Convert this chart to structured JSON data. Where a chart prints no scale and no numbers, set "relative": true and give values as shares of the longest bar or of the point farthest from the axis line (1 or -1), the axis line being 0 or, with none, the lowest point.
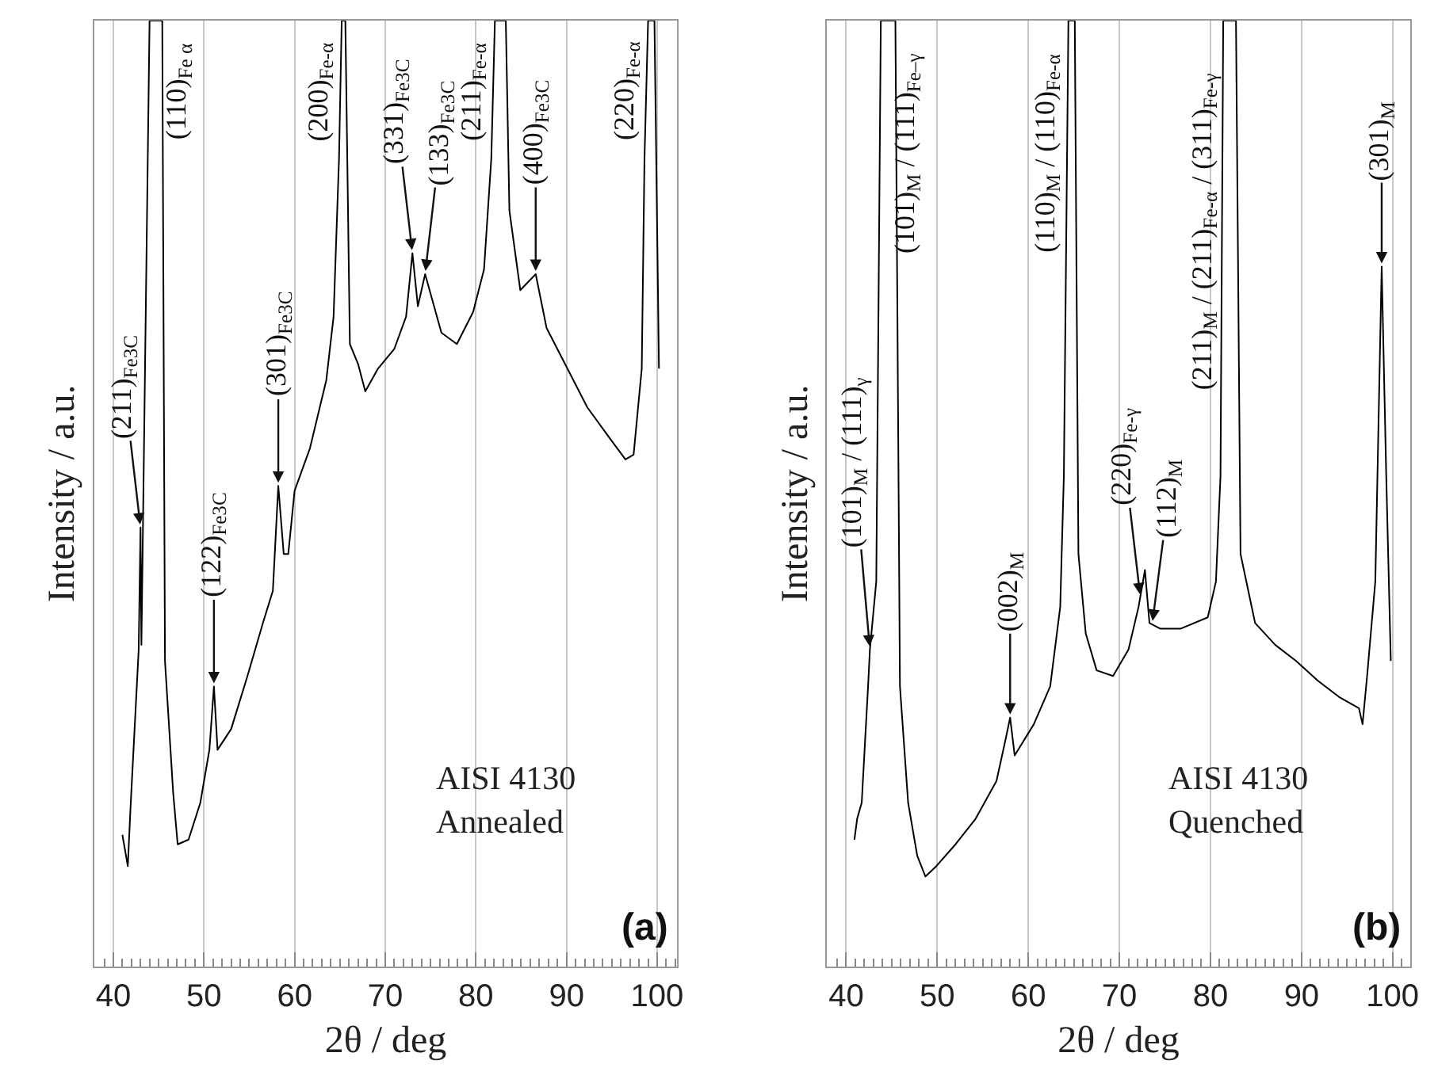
{
  "chart_data": [
    {
      "type": "line",
      "relative": true,
      "xlabel": "2θ / deg",
      "ylabel": "Intensity / a.u.",
      "xlim": [
        37.9,
        102.2
      ],
      "grid": "x",
      "tick_labels": "x",
      "xticks": [
        {
          "value": 38,
          "label": null
        },
        {
          "value": 39,
          "label": null
        },
        40,
        {
          "value": 41,
          "label": null
        },
        {
          "value": 42,
          "label": null
        },
        {
          "value": 43,
          "label": null
        },
        {
          "value": 44,
          "label": null
        },
        {
          "value": 45,
          "label": null
        },
        {
          "value": 46,
          "label": null
        },
        {
          "value": 47,
          "label": null
        },
        {
          "value": 48,
          "label": null
        },
        {
          "value": 49,
          "label": null
        },
        50,
        {
          "value": 51,
          "label": null
        },
        {
          "value": 52,
          "label": null
        },
        {
          "value": 53,
          "label": null
        },
        {
          "value": 54,
          "label": null
        },
        {
          "value": 55,
          "label": null
        },
        {
          "value": 56,
          "label": null
        },
        {
          "value": 57,
          "label": null
        },
        {
          "value": 58,
          "label": null
        },
        {
          "value": 59,
          "label": null
        },
        60,
        {
          "value": 61,
          "label": null
        },
        {
          "value": 62,
          "label": null
        },
        {
          "value": 63,
          "label": null
        },
        {
          "value": 64,
          "label": null
        },
        {
          "value": 65,
          "label": null
        },
        {
          "value": 66,
          "label": null
        },
        {
          "value": 67,
          "label": null
        },
        {
          "value": 68,
          "label": null
        },
        {
          "value": 69,
          "label": null
        },
        70,
        {
          "value": 71,
          "label": null
        },
        {
          "value": 72,
          "label": null
        },
        {
          "value": 73,
          "label": null
        },
        {
          "value": 74,
          "label": null
        },
        {
          "value": 75,
          "label": null
        },
        {
          "value": 76,
          "label": null
        },
        {
          "value": 77,
          "label": null
        },
        {
          "value": 78,
          "label": null
        },
        {
          "value": 79,
          "label": null
        },
        80,
        {
          "value": 81,
          "label": null
        },
        {
          "value": 82,
          "label": null
        },
        {
          "value": 83,
          "label": null
        },
        {
          "value": 84,
          "label": null
        },
        {
          "value": 85,
          "label": null
        },
        {
          "value": 86,
          "label": null
        },
        {
          "value": 87,
          "label": null
        },
        {
          "value": 88,
          "label": null
        },
        {
          "value": 89,
          "label": null
        },
        90,
        {
          "value": 91,
          "label": null
        },
        {
          "value": 92,
          "label": null
        },
        {
          "value": 93,
          "label": null
        },
        {
          "value": 94,
          "label": null
        },
        {
          "value": 95,
          "label": null
        },
        {
          "value": 96,
          "label": null
        },
        {
          "value": 97,
          "label": null
        },
        {
          "value": 98,
          "label": null
        },
        {
          "value": 99,
          "label": null
        },
        100,
        {
          "value": 101,
          "label": null
        },
        {
          "value": 102,
          "label": null
        }
      ],
      "series": [
        {
          "color": "#000000",
          "x": [
            41.0,
            41.6,
            41.9,
            42.8,
            43.0,
            43.1,
            44.0,
            45.4,
            45.7,
            46.6,
            47.1,
            48.3,
            49.6,
            50.6,
            51.1,
            51.5,
            53.0,
            54.8,
            56.5,
            57.6,
            58.2,
            58.8,
            59.3,
            60.0,
            61.7,
            63.5,
            64.3,
            64.9,
            65.2,
            65.6,
            66.1,
            67.0,
            67.8,
            69.2,
            71.0,
            72.3,
            73.0,
            73.6,
            74.4,
            76.2,
            77.9,
            79.7,
            80.9,
            81.7,
            82.1,
            83.3,
            83.7,
            84.9,
            86.6,
            87.8,
            90.1,
            92.3,
            94.8,
            96.5,
            97.4,
            98.3,
            98.6,
            99.0,
            99.7,
            100.2
          ],
          "values": [
            0.139,
            0.106,
            0.168,
            0.335,
            0.464,
            0.34,
            1,
            1,
            0.323,
            0.184,
            0.129,
            0.134,
            0.173,
            0.229,
            0.296,
            0.229,
            0.251,
            0.307,
            0.363,
            0.397,
            0.508,
            0.436,
            0.436,
            0.503,
            0.548,
            0.62,
            0.687,
            0.854,
            1,
            1,
            0.658,
            0.637,
            0.608,
            0.632,
            0.653,
            0.687,
            0.754,
            0.698,
            0.732,
            0.67,
            0.658,
            0.692,
            0.737,
            0.854,
            1,
            1,
            0.799,
            0.715,
            0.732,
            0.675,
            0.632,
            0.591,
            0.558,
            0.536,
            0.541,
            0.632,
            0.854,
            1,
            1,
            0.632
          ]
        }
      ],
      "annotations": [
        {
          "text": "(211)$_{Fe3C}$",
          "x": 43.0,
          "y": 0.464
        },
        {
          "text": "(110)$_{Fe α}$",
          "x": 44.6,
          "y": 1
        },
        {
          "text": "(122)$_{Fe3C}$",
          "x": 51.1,
          "y": 0.296
        },
        {
          "text": "(301)$_{Fe3C}$",
          "x": 58.2,
          "y": 0.508
        },
        {
          "text": "(200)$_{Fe-α}$",
          "x": 65.4,
          "y": 1
        },
        {
          "text": "(331)$_{Fe3C}$",
          "x": 73.0,
          "y": 0.754
        },
        {
          "text": "(133)$_{Fe3C}$",
          "x": 74.4,
          "y": 0.732
        },
        {
          "text": "(211)$_{Fe-α}$",
          "x": 82.3,
          "y": 1
        },
        {
          "text": "(400)$_{Fe3C}$",
          "x": 86.6,
          "y": 0.732
        },
        {
          "text": "(220)$_{Fe-α}$",
          "x": 99.2,
          "y": 1
        },
        "AISI 4130\nAnnealed",
        "(a)"
      ]
    },
    {
      "type": "line",
      "relative": true,
      "xlabel": "2θ / deg",
      "ylabel": "Intensity / a.u.",
      "xlim": [
        37.9,
        101.9
      ],
      "grid": "x",
      "tick_labels": "x",
      "xticks": [
        {
          "value": 38,
          "label": null
        },
        {
          "value": 39,
          "label": null
        },
        40,
        {
          "value": 41,
          "label": null
        },
        {
          "value": 42,
          "label": null
        },
        {
          "value": 43,
          "label": null
        },
        {
          "value": 44,
          "label": null
        },
        {
          "value": 45,
          "label": null
        },
        {
          "value": 46,
          "label": null
        },
        {
          "value": 47,
          "label": null
        },
        {
          "value": 48,
          "label": null
        },
        {
          "value": 49,
          "label": null
        },
        50,
        {
          "value": 51,
          "label": null
        },
        {
          "value": 52,
          "label": null
        },
        {
          "value": 53,
          "label": null
        },
        {
          "value": 54,
          "label": null
        },
        {
          "value": 55,
          "label": null
        },
        {
          "value": 56,
          "label": null
        },
        {
          "value": 57,
          "label": null
        },
        {
          "value": 58,
          "label": null
        },
        {
          "value": 59,
          "label": null
        },
        60,
        {
          "value": 61,
          "label": null
        },
        {
          "value": 62,
          "label": null
        },
        {
          "value": 63,
          "label": null
        },
        {
          "value": 64,
          "label": null
        },
        {
          "value": 65,
          "label": null
        },
        {
          "value": 66,
          "label": null
        },
        {
          "value": 67,
          "label": null
        },
        {
          "value": 68,
          "label": null
        },
        {
          "value": 69,
          "label": null
        },
        70,
        {
          "value": 71,
          "label": null
        },
        {
          "value": 72,
          "label": null
        },
        {
          "value": 73,
          "label": null
        },
        {
          "value": 74,
          "label": null
        },
        {
          "value": 75,
          "label": null
        },
        {
          "value": 76,
          "label": null
        },
        {
          "value": 77,
          "label": null
        },
        {
          "value": 78,
          "label": null
        },
        {
          "value": 79,
          "label": null
        },
        80,
        {
          "value": 81,
          "label": null
        },
        {
          "value": 82,
          "label": null
        },
        {
          "value": 83,
          "label": null
        },
        {
          "value": 84,
          "label": null
        },
        {
          "value": 85,
          "label": null
        },
        {
          "value": 86,
          "label": null
        },
        {
          "value": 87,
          "label": null
        },
        {
          "value": 88,
          "label": null
        },
        {
          "value": 89,
          "label": null
        },
        90,
        {
          "value": 91,
          "label": null
        },
        {
          "value": 92,
          "label": null
        },
        {
          "value": 93,
          "label": null
        },
        {
          "value": 94,
          "label": null
        },
        {
          "value": 95,
          "label": null
        },
        {
          "value": 96,
          "label": null
        },
        {
          "value": 97,
          "label": null
        },
        {
          "value": 98,
          "label": null
        },
        {
          "value": 99,
          "label": null
        },
        100,
        {
          "value": 101,
          "label": null
        }
      ],
      "series": [
        {
          "color": "#000000",
          "x": [
            40.9,
            41.2,
            41.7,
            42.4,
            42.6,
            43.3,
            43.8,
            45.4,
            45.9,
            46.8,
            47.8,
            48.7,
            49.9,
            52.0,
            54.2,
            56.5,
            57.5,
            58.0,
            58.5,
            60.6,
            62.4,
            63.5,
            63.9,
            64.4,
            65.1,
            65.5,
            66.3,
            67.5,
            69.3,
            71.0,
            72.1,
            72.8,
            73.3,
            74.5,
            76.7,
            79.7,
            80.6,
            81.1,
            81.4,
            82.8,
            83.3,
            84.9,
            87.1,
            89.4,
            91.8,
            94.1,
            96.3,
            96.7,
            97.2,
            98.1,
            98.8,
            99.3,
            99.8
          ],
          "values": [
            0.134,
            0.156,
            0.173,
            0.296,
            0.335,
            0.407,
            1,
            1,
            0.296,
            0.173,
            0.117,
            0.095,
            0.106,
            0.129,
            0.156,
            0.196,
            0.24,
            0.263,
            0.223,
            0.256,
            0.296,
            0.38,
            0.519,
            1,
            1,
            0.436,
            0.352,
            0.313,
            0.307,
            0.335,
            0.38,
            0.419,
            0.363,
            0.357,
            0.357,
            0.369,
            0.407,
            0.519,
            1,
            1,
            0.436,
            0.363,
            0.34,
            0.323,
            0.302,
            0.285,
            0.273,
            0.256,
            0.307,
            0.407,
            0.74,
            0.519,
            0.323
          ]
        }
      ],
      "annotations": [
        {
          "text": "(101)$_{M}$ / (111)$_{γ}$",
          "x": 42.6,
          "y": 0.335
        },
        {
          "text": "(101)$_{M}$ / (111)$_{Fe–γ}$",
          "x": 44.1,
          "y": 1
        },
        {
          "text": "(002)$_{M}$",
          "x": 58.0,
          "y": 0.263
        },
        {
          "text": "(110)$_{M}$ / (110)$_{Fe-α}$",
          "x": 64.7,
          "y": 1
        },
        {
          "text": "(220)$_{Fe-γ}$",
          "x": 72.3,
          "y": 0.39
        },
        {
          "text": "(112)$_{M}$",
          "x": 73.6,
          "y": 0.362
        },
        {
          "text": "(211)$_{M}$ / (211)$_{Fe-α}$ / (311)$_{Fe-γ}$",
          "x": 81.9,
          "y": 1
        },
        {
          "text": "(301)$_{M}$",
          "x": 98.8,
          "y": 0.74
        },
        "AISI 4130\nQuenched",
        "(b)"
      ]
    }
  ]
}
